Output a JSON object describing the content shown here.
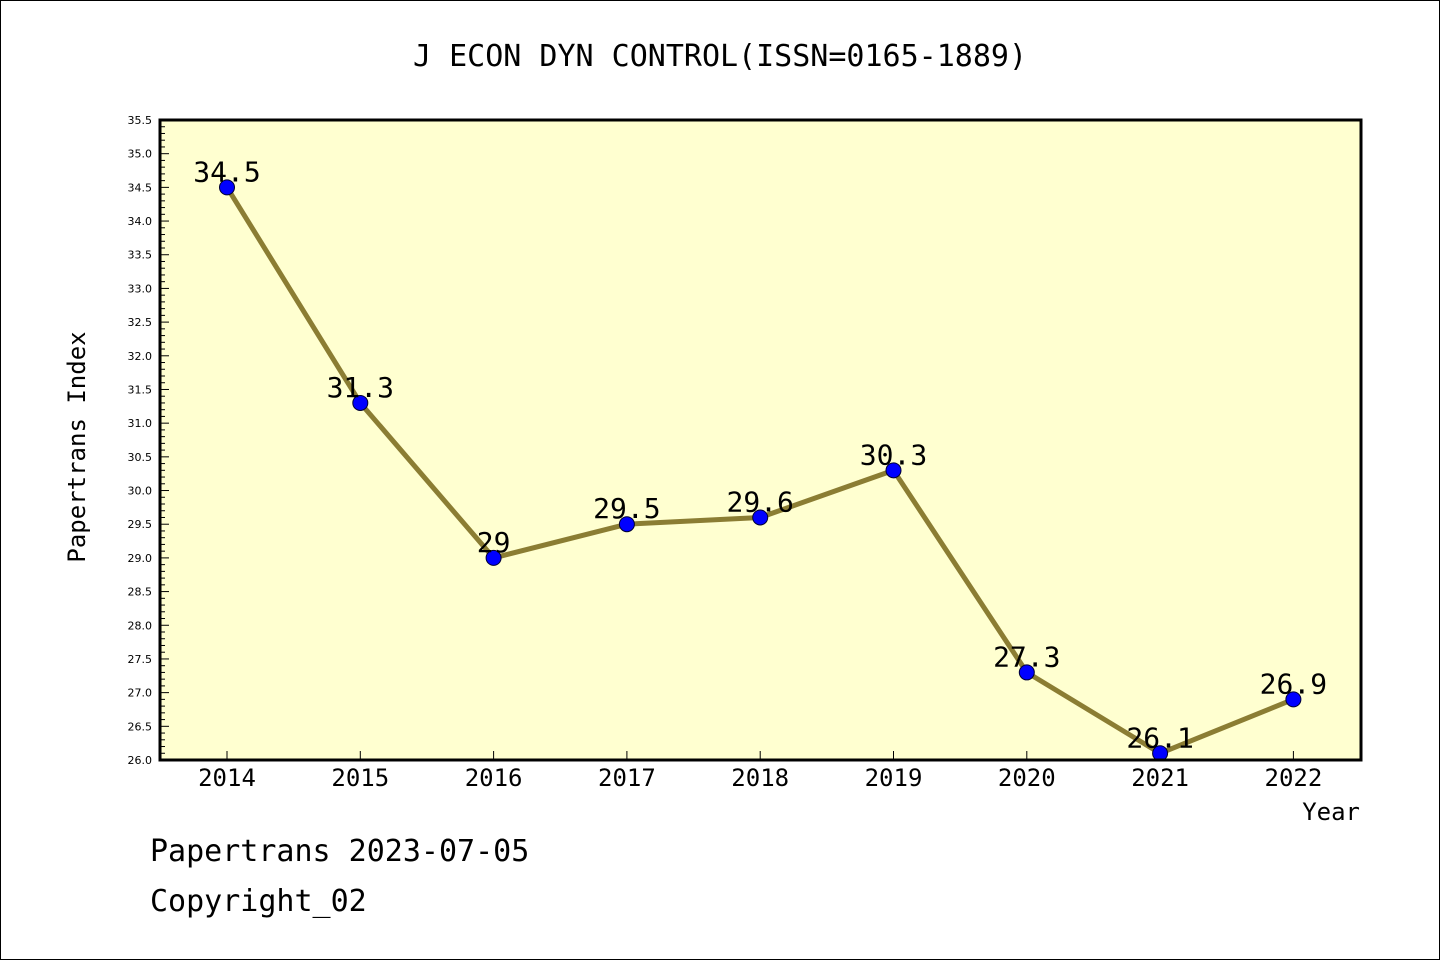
{
  "chart_data": {
    "type": "line",
    "title": "J ECON DYN CONTROL(ISSN=0165-1889)",
    "xlabel": "Year",
    "ylabel": "Papertrans Index",
    "categories": [
      "2014",
      "2015",
      "2016",
      "2017",
      "2018",
      "2019",
      "2020",
      "2021",
      "2022"
    ],
    "values": [
      34.5,
      31.3,
      29,
      29.5,
      29.6,
      30.3,
      27.3,
      26.1,
      26.9
    ],
    "value_labels": [
      "34.5",
      "31.3",
      "29",
      "29.5",
      "29.6",
      "30.3",
      "27.3",
      "26.1",
      "26.9"
    ],
    "ylim": [
      26.0,
      35.5
    ],
    "y_ticks": [
      "26.0",
      "26.5",
      "27.0",
      "27.5",
      "28.0",
      "28.5",
      "29.0",
      "29.5",
      "30.0",
      "30.5",
      "31.0",
      "31.5",
      "32.0",
      "32.5",
      "33.0",
      "33.5",
      "34.0",
      "34.5",
      "35.0",
      "35.5"
    ],
    "grid": false,
    "colors": {
      "plot_background": "#ffffd0",
      "line": "#8b7d33",
      "marker": "#0000ff"
    }
  },
  "footer": {
    "line1": "Papertrans 2023-07-05",
    "line2": "Copyright_02"
  }
}
